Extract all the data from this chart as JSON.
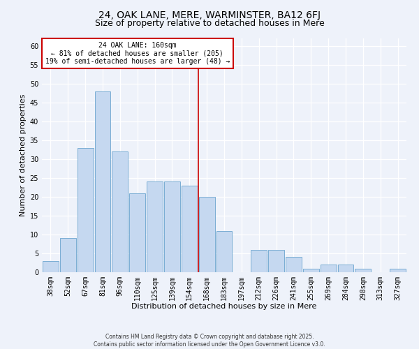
{
  "title": "24, OAK LANE, MERE, WARMINSTER, BA12 6FJ",
  "subtitle": "Size of property relative to detached houses in Mere",
  "xlabel": "Distribution of detached houses by size in Mere",
  "ylabel": "Number of detached properties",
  "bar_labels": [
    "38sqm",
    "52sqm",
    "67sqm",
    "81sqm",
    "96sqm",
    "110sqm",
    "125sqm",
    "139sqm",
    "154sqm",
    "168sqm",
    "183sqm",
    "197sqm",
    "212sqm",
    "226sqm",
    "241sqm",
    "255sqm",
    "269sqm",
    "284sqm",
    "298sqm",
    "313sqm",
    "327sqm"
  ],
  "bar_values": [
    3,
    9,
    33,
    48,
    32,
    21,
    24,
    24,
    23,
    20,
    11,
    0,
    6,
    6,
    4,
    1,
    2,
    2,
    1,
    0,
    1
  ],
  "bar_color": "#c5d8f0",
  "bar_edge_color": "#7aadd4",
  "vline_color": "#cc0000",
  "annotation_text": "24 OAK LANE: 160sqm\n← 81% of detached houses are smaller (205)\n19% of semi-detached houses are larger (48) →",
  "annotation_box_edgecolor": "#cc0000",
  "ylim": [
    0,
    62
  ],
  "yticks": [
    0,
    5,
    10,
    15,
    20,
    25,
    30,
    35,
    40,
    45,
    50,
    55,
    60
  ],
  "background_color": "#eef2fa",
  "grid_color": "#ffffff",
  "footer1": "Contains HM Land Registry data © Crown copyright and database right 2025.",
  "footer2": "Contains public sector information licensed under the Open Government Licence v3.0.",
  "title_fontsize": 10,
  "subtitle_fontsize": 9,
  "axis_label_fontsize": 8,
  "tick_fontsize": 7,
  "annotation_fontsize": 7,
  "footer_fontsize": 5.5
}
